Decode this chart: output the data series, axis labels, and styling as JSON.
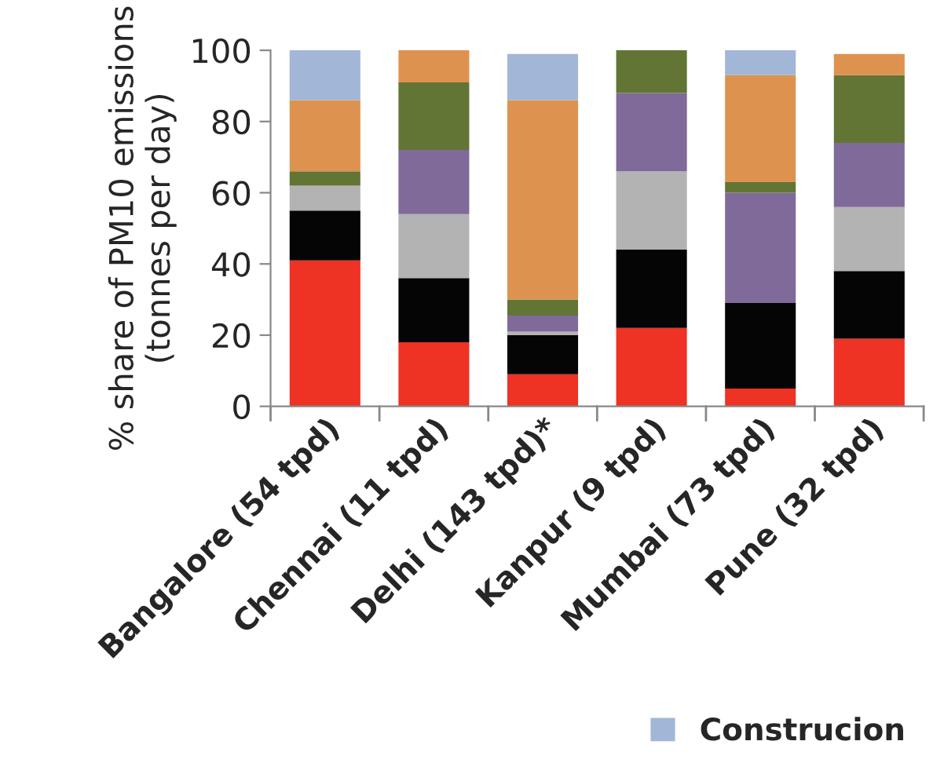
{
  "chart_data": {
    "type": "bar",
    "stacked": true,
    "ylabel": "% share of PM10 emissions\n(tonnes per day)",
    "categories": [
      "Bangalore (54 tpd)",
      "Chennai (11 tpd)",
      "Delhi (143 tpd)*",
      "Kanpur (9 tpd)",
      "Mumbai (73 tpd)",
      "Pune (32 tpd)"
    ],
    "series": [
      {
        "color": "#ee3224",
        "values": [
          41,
          18,
          9,
          22,
          5,
          19
        ]
      },
      {
        "color": "#050505",
        "values": [
          14,
          18,
          11,
          22,
          24,
          19
        ]
      },
      {
        "color": "#b3b3b3",
        "values": [
          7,
          18,
          1,
          22,
          0,
          18
        ]
      },
      {
        "color": "#806a99",
        "values": [
          0,
          18,
          4.5,
          22,
          31,
          18
        ]
      },
      {
        "color": "#627535",
        "values": [
          4,
          19,
          4.5,
          12,
          3,
          19
        ]
      },
      {
        "color": "#dd934f",
        "values": [
          20,
          9,
          56,
          0,
          30,
          6
        ]
      },
      {
        "name": "Construcion",
        "color": "#a2b6d8",
        "values": [
          14,
          0,
          13,
          0,
          7,
          0
        ]
      }
    ],
    "ylim": [
      0,
      100
    ],
    "yticks": [
      0,
      20,
      40,
      60,
      80,
      100
    ],
    "grid": false,
    "legend": "bottom"
  }
}
